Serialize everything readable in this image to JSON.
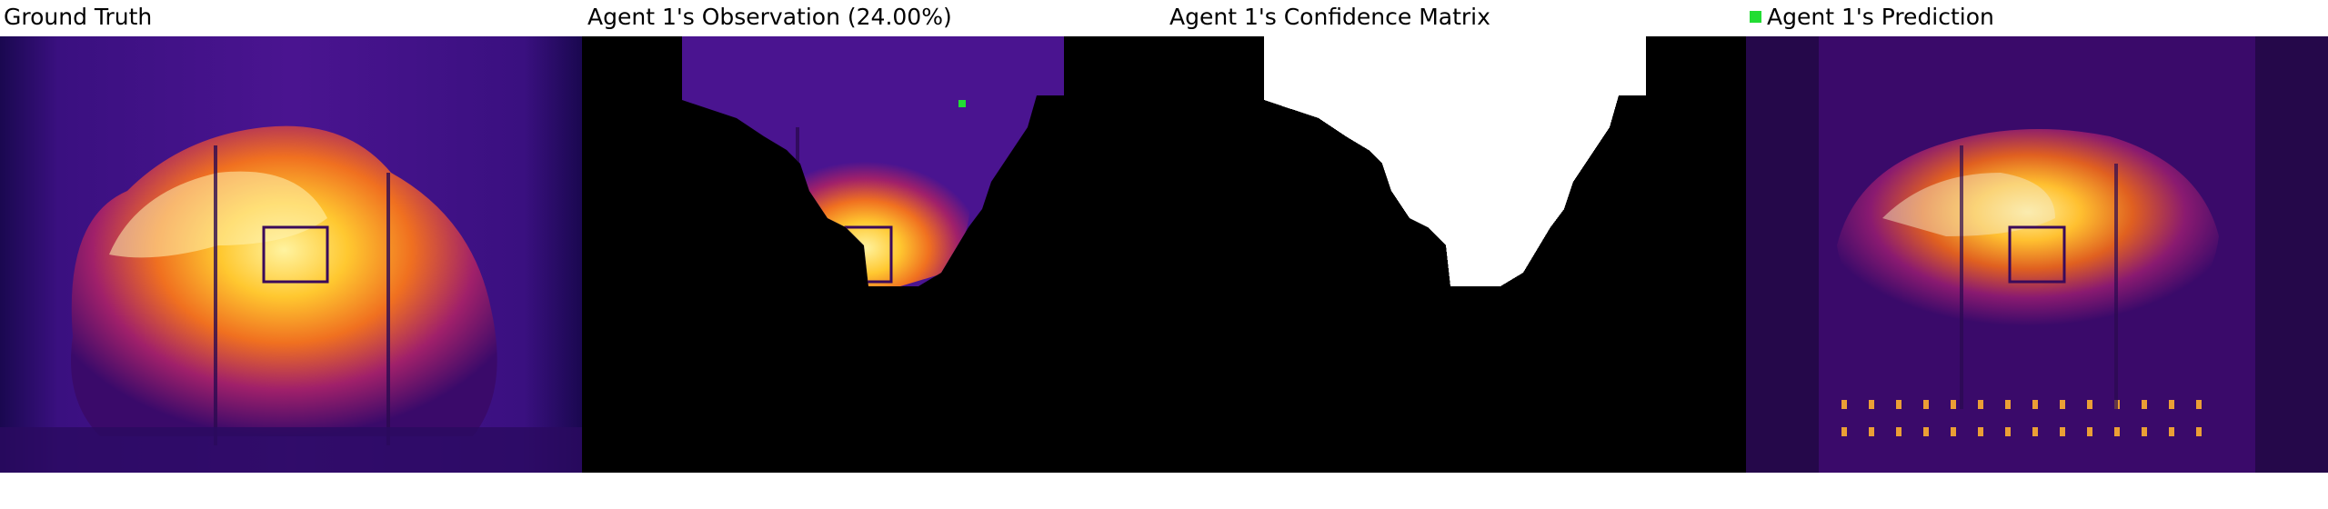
{
  "panels": [
    {
      "title": "Ground Truth"
    },
    {
      "title": "Agent 1's Observation (24.00%)"
    },
    {
      "title": "Agent 1's Confidence Matrix"
    },
    {
      "title": "Agent 1's Prediction"
    }
  ],
  "legend": {
    "marker_color": "#22dd33"
  }
}
